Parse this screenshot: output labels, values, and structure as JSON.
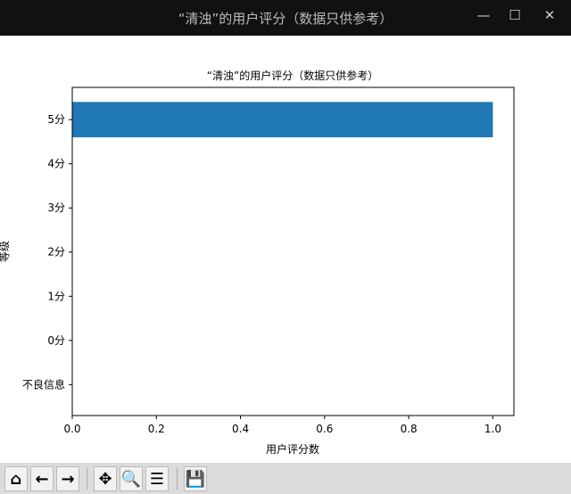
{
  "window": {
    "title": "“清浊”的用户评分（数据只供参考）",
    "minimize": "—",
    "maximize": "☐",
    "close": "✕"
  },
  "toolbar": [
    {
      "name": "home-icon",
      "glyph": "⌂"
    },
    {
      "name": "back-icon",
      "glyph": "←"
    },
    {
      "name": "forward-icon",
      "glyph": "→"
    },
    {
      "name": "pan-icon",
      "glyph": "✥"
    },
    {
      "name": "zoom-icon",
      "glyph": "🔍"
    },
    {
      "name": "configure-subplots-icon",
      "glyph": "☰"
    },
    {
      "name": "save-icon",
      "glyph": "💾"
    }
  ],
  "chart_data": {
    "type": "bar",
    "orientation": "horizontal",
    "title": "“清浊”的用户评分（数据只供参考）",
    "xlabel": "用户评分数",
    "ylabel": "等级",
    "categories": [
      "不良信息",
      "0分",
      "1分",
      "2分",
      "3分",
      "4分",
      "5分"
    ],
    "values": [
      0,
      0,
      0,
      0,
      0,
      0,
      1
    ],
    "xlim": [
      0,
      1.05
    ],
    "xticks": [
      "0.0",
      "0.2",
      "0.4",
      "0.6",
      "0.8",
      "1.0"
    ],
    "bar_color": "#1f77b4",
    "grid": false
  }
}
